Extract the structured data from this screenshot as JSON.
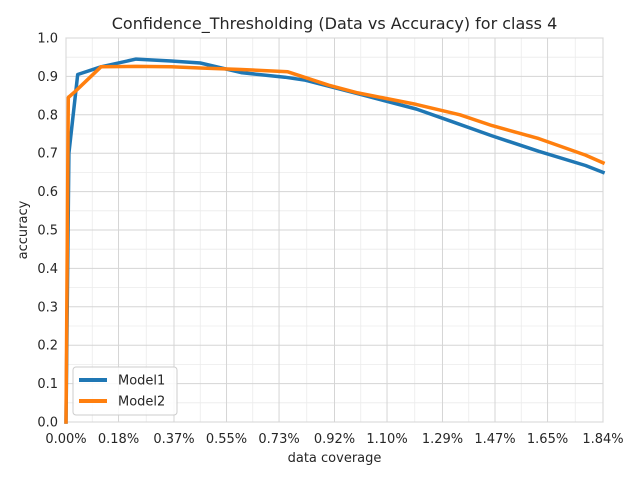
{
  "chart_data": {
    "type": "line",
    "title": "Confidence_Thresholding (Data vs Accuracy) for class 4",
    "xlabel": "data coverage",
    "ylabel": "accuracy",
    "xlim": [
      0.0,
      1.84
    ],
    "ylim": [
      0.0,
      1.0
    ],
    "x_ticks": [
      0.0,
      0.18,
      0.37,
      0.55,
      0.73,
      0.92,
      1.1,
      1.29,
      1.47,
      1.65,
      1.84
    ],
    "x_tick_labels": [
      "0.00%",
      "0.18%",
      "0.37%",
      "0.55%",
      "0.73%",
      "0.92%",
      "1.10%",
      "1.29%",
      "1.47%",
      "1.65%",
      "1.84%"
    ],
    "y_ticks": [
      0.0,
      0.1,
      0.2,
      0.3,
      0.4,
      0.5,
      0.6,
      0.7,
      0.8,
      0.9,
      1.0
    ],
    "y_tick_labels": [
      "0.0",
      "0.1",
      "0.2",
      "0.3",
      "0.4",
      "0.5",
      "0.6",
      "0.7",
      "0.8",
      "0.9",
      "1.0"
    ],
    "grid": true,
    "legend_position": "lower-left",
    "series": [
      {
        "name": "Model1",
        "color": "#1f77b4",
        "x": [
          0.0,
          0.01,
          0.04,
          0.12,
          0.24,
          0.36,
          0.46,
          0.6,
          0.75,
          0.82,
          1.0,
          1.2,
          1.32,
          1.46,
          1.62,
          1.78,
          1.84
        ],
        "y": [
          0.0,
          0.7,
          0.905,
          0.925,
          0.945,
          0.94,
          0.935,
          0.91,
          0.898,
          0.89,
          0.855,
          0.815,
          0.783,
          0.745,
          0.705,
          0.668,
          0.65
        ]
      },
      {
        "name": "Model2",
        "color": "#ff7f0e",
        "x": [
          0.0,
          0.008,
          0.03,
          0.12,
          0.24,
          0.36,
          0.46,
          0.6,
          0.76,
          0.9,
          1.0,
          1.2,
          1.35,
          1.46,
          1.62,
          1.78,
          1.84
        ],
        "y": [
          0.0,
          0.845,
          0.86,
          0.925,
          0.926,
          0.925,
          0.922,
          0.918,
          0.912,
          0.877,
          0.857,
          0.827,
          0.8,
          0.772,
          0.738,
          0.695,
          0.675
        ]
      }
    ]
  }
}
